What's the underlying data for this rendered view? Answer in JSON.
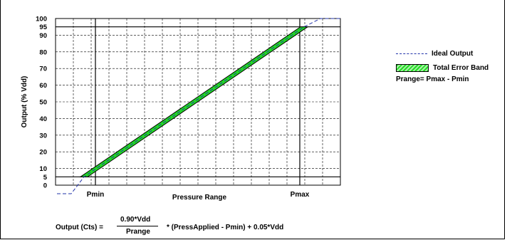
{
  "chart_data": {
    "type": "line",
    "xlabel": "Pressure Range",
    "ylabel": "Output (% Vdd)",
    "x_tick_labels": [
      "Pmin",
      "Pmax"
    ],
    "y_ticks": [
      0,
      5,
      10,
      20,
      30,
      40,
      50,
      60,
      70,
      80,
      90,
      95,
      100
    ],
    "ylim": [
      0,
      100
    ],
    "grid": true,
    "legend_position": "right",
    "series": [
      {
        "name": "Ideal Output",
        "style": "dashed",
        "color": "#2233aa",
        "points": [
          [
            "min",
            0
          ],
          [
            "Pmin",
            5
          ],
          [
            "Pmax",
            95
          ],
          [
            "max",
            100
          ]
        ]
      },
      {
        "name": "Total Error Band",
        "style": "band",
        "color": "#22dd22",
        "points": [
          [
            "Pmin",
            5
          ],
          [
            "Pmax",
            95
          ]
        ]
      }
    ]
  },
  "legend": {
    "ideal_label": "Ideal Output",
    "band_label": "Total Error Band",
    "prange_text": "Prange= Pmax - Pmin"
  },
  "formula": {
    "lhs": "Output (Cts) =",
    "numerator": "0.90*Vdd",
    "denominator": "Prange",
    "rhs": "* (PressApplied - Pmin) + 0.05*Vdd"
  }
}
